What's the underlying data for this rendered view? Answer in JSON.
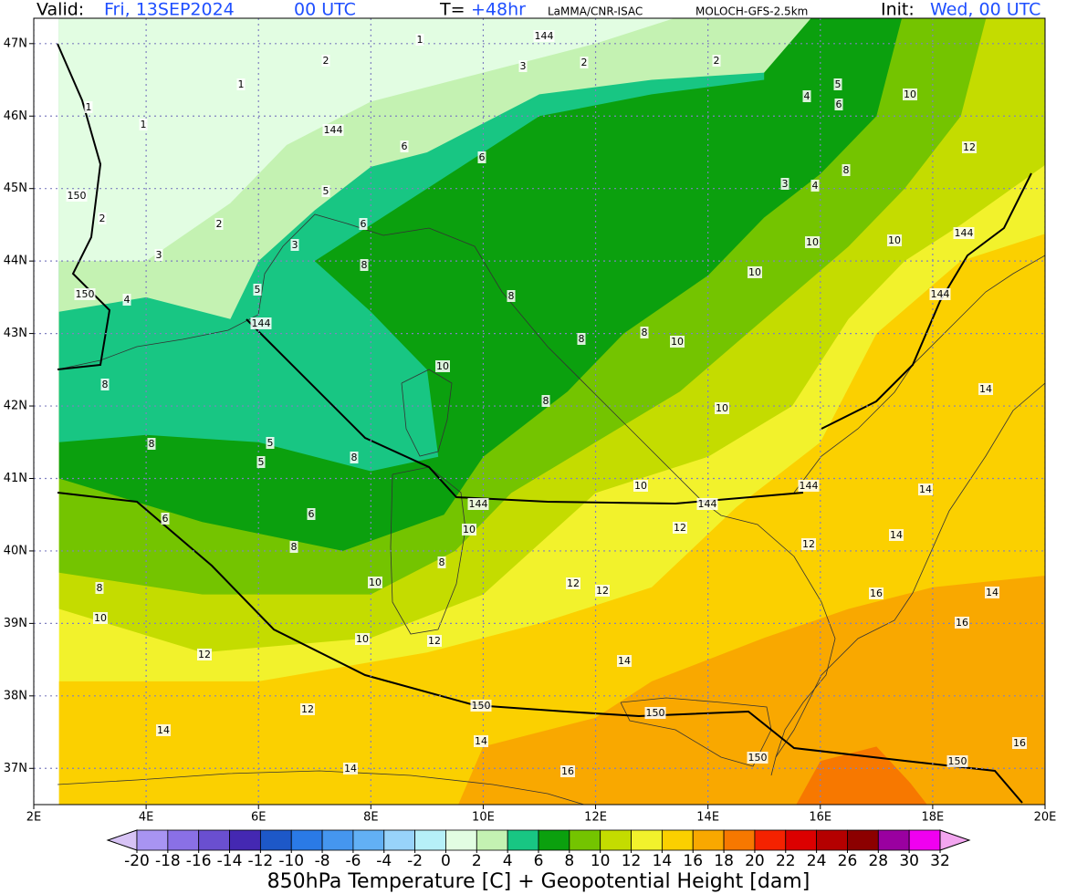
{
  "header": {
    "valid_label": "Valid:",
    "valid_day": "Fri, 13SEP2024",
    "valid_hour": "00 UTC",
    "lead_label": "T=",
    "lead_time": "+48hr",
    "institution": "LaMMA/CNR-ISAC",
    "model": "MOLOCH-GFS-2.5km",
    "init_label": "Init:",
    "init_time": "Wed, 00 UTC",
    "accent_color": "#1f4fff"
  },
  "map": {
    "xlim": [
      2,
      20
    ],
    "ylim": [
      36.5,
      47.35
    ],
    "grid": true,
    "lon_ticks": [
      {
        "value": 2,
        "label": "2E"
      },
      {
        "value": 4,
        "label": "4E"
      },
      {
        "value": 6,
        "label": "6E"
      },
      {
        "value": 8,
        "label": "8E"
      },
      {
        "value": 10,
        "label": "10E"
      },
      {
        "value": 12,
        "label": "12E"
      },
      {
        "value": 14,
        "label": "14E"
      },
      {
        "value": 16,
        "label": "16E"
      },
      {
        "value": 18,
        "label": "18E"
      },
      {
        "value": 20,
        "label": "20E"
      }
    ],
    "lat_ticks": [
      {
        "value": 37,
        "label": "37N"
      },
      {
        "value": 38,
        "label": "38N"
      },
      {
        "value": 39,
        "label": "39N"
      },
      {
        "value": 40,
        "label": "40N"
      },
      {
        "value": 41,
        "label": "41N"
      },
      {
        "value": 42,
        "label": "42N"
      },
      {
        "value": 43,
        "label": "43N"
      },
      {
        "value": 44,
        "label": "44N"
      },
      {
        "value": 45,
        "label": "45N"
      },
      {
        "value": 46,
        "label": "46N"
      },
      {
        "value": 47,
        "label": "47N"
      }
    ],
    "contour_labels": [
      10,
      10,
      10,
      10,
      10,
      10,
      10,
      10,
      10,
      10,
      10,
      10,
      12,
      12,
      12,
      12,
      12,
      12,
      12,
      12,
      14,
      14,
      14,
      14,
      14,
      14,
      14,
      14,
      16,
      16,
      16,
      16,
      8,
      8,
      8,
      8,
      8,
      8,
      8,
      8,
      8,
      8,
      8,
      8,
      6,
      6,
      6,
      6,
      6,
      6,
      5,
      5,
      5,
      5,
      5,
      4,
      4,
      4,
      3,
      3,
      3,
      3,
      2,
      2,
      2,
      2,
      2,
      1,
      1,
      1,
      1,
      144,
      144,
      144,
      144,
      144,
      144,
      144,
      144,
      150,
      150,
      150,
      150,
      150,
      150
    ]
  },
  "colorbar": {
    "title": "850hPa Temperature [C] + Geopotential Height [dam]",
    "ticks": [
      -20,
      -18,
      -16,
      -14,
      -12,
      -10,
      -8,
      -6,
      -4,
      -2,
      0,
      2,
      4,
      6,
      8,
      10,
      12,
      14,
      16,
      18,
      20,
      22,
      24,
      26,
      28,
      30,
      32
    ],
    "colors": [
      "#d7c3f5",
      "#a894f2",
      "#8a70e6",
      "#6a4fd0",
      "#4428b2",
      "#1d58c8",
      "#2a7ae6",
      "#4596ef",
      "#62b0f5",
      "#98d3fa",
      "#b6f0f8",
      "#e2fde2",
      "#c4f2b2",
      "#18c683",
      "#0ba00e",
      "#74c400",
      "#c4dc00",
      "#f2f22c",
      "#fbd000",
      "#f9a800",
      "#f77800",
      "#f52200",
      "#dc0000",
      "#b40000",
      "#8c0000",
      "#9a00a0",
      "#f000f0",
      "#f2a6ef"
    ]
  }
}
